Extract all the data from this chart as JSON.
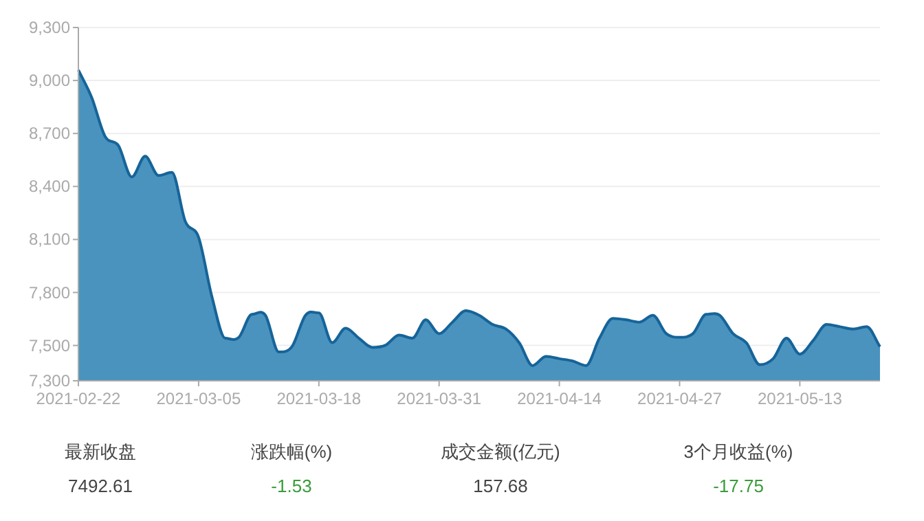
{
  "chart_data": {
    "type": "area",
    "categories": [
      "2021-02-22",
      null,
      null,
      null,
      null,
      null,
      null,
      null,
      null,
      "2021-03-05",
      null,
      null,
      null,
      null,
      null,
      null,
      null,
      null,
      "2021-03-18",
      null,
      null,
      null,
      null,
      null,
      null,
      null,
      null,
      "2021-03-31",
      null,
      null,
      null,
      null,
      null,
      null,
      null,
      null,
      "2021-04-14",
      null,
      null,
      null,
      null,
      null,
      null,
      null,
      null,
      "2021-04-27",
      null,
      null,
      null,
      null,
      null,
      null,
      null,
      null,
      "2021-05-13",
      null,
      null,
      null,
      null,
      null,
      null
    ],
    "series": [
      {
        "color": "#4a93bf",
        "values": [
          9059,
          8903,
          8683,
          8631,
          8454,
          8571,
          8462,
          8480,
          8203,
          8112,
          7775,
          7541,
          7545,
          7676,
          7671,
          7463,
          7495,
          7671,
          7684,
          7516,
          7598,
          7541,
          7489,
          7502,
          7559,
          7541,
          7645,
          7567,
          7632,
          7697,
          7671,
          7619,
          7593,
          7515,
          7386,
          7438,
          7425,
          7412,
          7386,
          7541,
          7653,
          7645,
          7632,
          7671,
          7567,
          7546,
          7567,
          7676,
          7671,
          7567,
          7515,
          7391,
          7425,
          7541,
          7451,
          7528,
          7619,
          7606,
          7593,
          7606,
          7493
        ]
      }
    ],
    "ylim": [
      7300,
      9300
    ],
    "yticks": [
      {
        "value": 7300,
        "label": "7,300"
      },
      {
        "value": 7500,
        "label": "7,500"
      },
      {
        "value": 7800,
        "label": "7,800"
      },
      {
        "value": 8100,
        "label": "8,100"
      },
      {
        "value": 8400,
        "label": "8,400"
      },
      {
        "value": 8700,
        "label": "8,700"
      },
      {
        "value": 9000,
        "label": "9,000"
      },
      {
        "value": 9300,
        "label": "9,300"
      }
    ],
    "grid": "y",
    "annotations": [
      "最新收盘",
      "7492.61",
      "涨跌幅(%)",
      "-1.53",
      "成交金额(亿元)",
      "157.68",
      "3个月收益(%)",
      "-17.75"
    ]
  }
}
